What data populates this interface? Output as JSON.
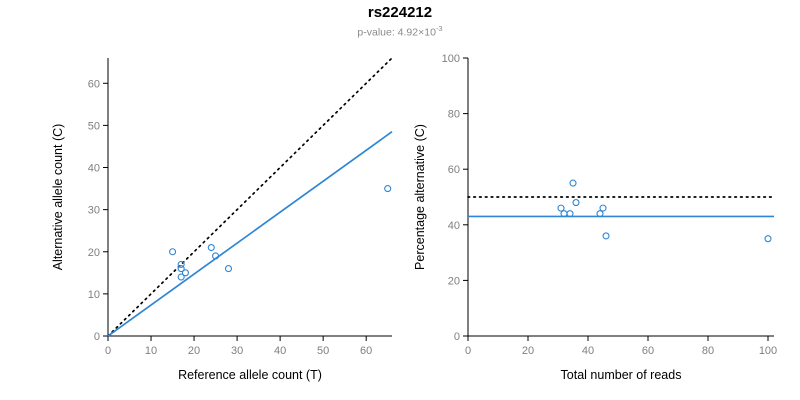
{
  "title": "rs224212",
  "subtitle": {
    "base": "p-value: 4.92×10",
    "exponent": "-3"
  },
  "colors": {
    "accent": "#2f86d5",
    "identity_line": "#000000",
    "axis": "#000000",
    "tick_text": "#7f7f7f",
    "subtitle_text": "#8a8a8a"
  },
  "chart_data": [
    {
      "type": "scatter",
      "title": "",
      "xlabel": "Reference allele count (T)",
      "ylabel": "Alternative allele count (C)",
      "xlim": [
        0,
        66
      ],
      "ylim": [
        0,
        66
      ],
      "xticks": [
        0,
        10,
        20,
        30,
        40,
        50,
        60
      ],
      "yticks": [
        0,
        10,
        20,
        30,
        40,
        50,
        60
      ],
      "grid": false,
      "legend": "none",
      "points": [
        [
          15,
          20
        ],
        [
          17,
          17
        ],
        [
          17,
          16
        ],
        [
          17,
          14
        ],
        [
          18,
          15
        ],
        [
          24,
          21
        ],
        [
          25,
          19
        ],
        [
          28,
          16
        ],
        [
          65,
          35
        ]
      ],
      "lines": [
        {
          "name": "identity-line",
          "x1": 0,
          "y1": 0,
          "x2": 66,
          "y2": 66,
          "style": "dotted",
          "color": "#000000"
        },
        {
          "name": "fit-line",
          "x1": 0,
          "y1": 0,
          "x2": 66,
          "y2": 48.5,
          "style": "solid",
          "color": "#2f86d5"
        }
      ]
    },
    {
      "type": "scatter",
      "title": "",
      "xlabel": "Total number of reads",
      "ylabel": "Percentage alternative (C)",
      "xlim": [
        0,
        102
      ],
      "ylim": [
        0,
        100
      ],
      "xticks": [
        0,
        20,
        40,
        60,
        80,
        100
      ],
      "yticks": [
        0,
        20,
        40,
        60,
        80,
        100
      ],
      "grid": false,
      "legend": "none",
      "points": [
        [
          31,
          46
        ],
        [
          32,
          44
        ],
        [
          34,
          44
        ],
        [
          35,
          55
        ],
        [
          36,
          48
        ],
        [
          44,
          44
        ],
        [
          45,
          46
        ],
        [
          46,
          36
        ],
        [
          100,
          35
        ]
      ],
      "lines": [
        {
          "name": "expected-50pct-line",
          "x1": 0,
          "y1": 50,
          "x2": 102,
          "y2": 50,
          "style": "dotted",
          "color": "#000000"
        },
        {
          "name": "observed-mean-line",
          "x1": 0,
          "y1": 43,
          "x2": 102,
          "y2": 43,
          "style": "solid",
          "color": "#2f86d5"
        }
      ]
    }
  ]
}
